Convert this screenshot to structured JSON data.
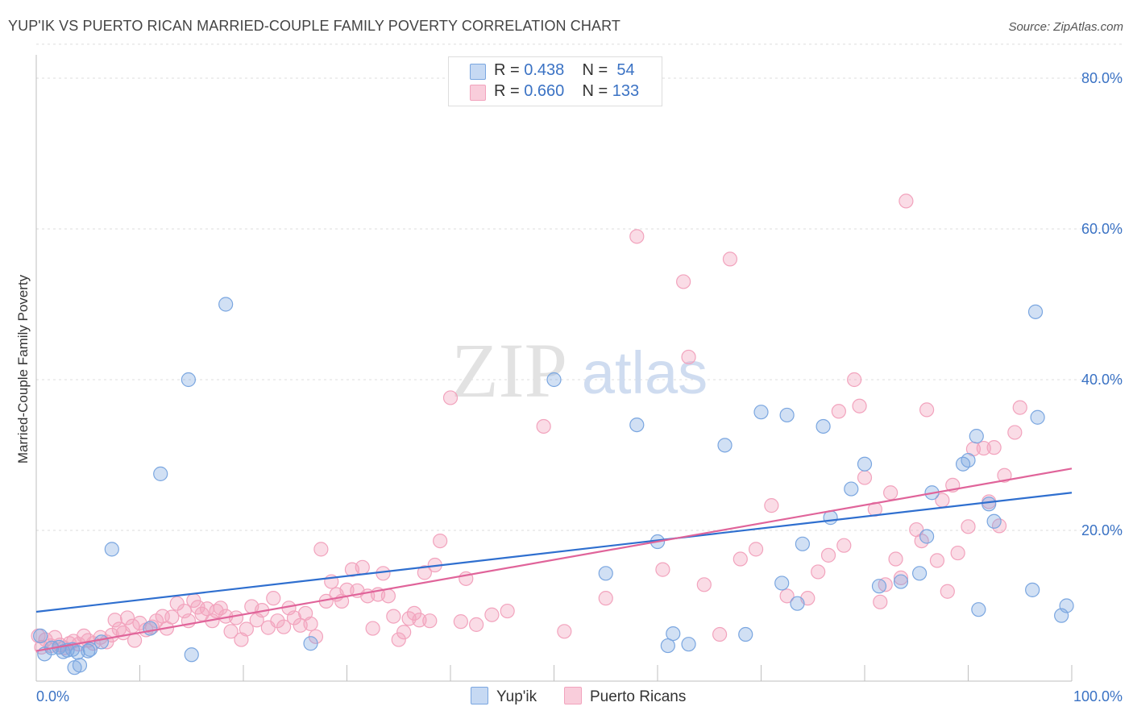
{
  "title": "YUP'IK VS PUERTO RICAN MARRIED-COUPLE FAMILY POVERTY CORRELATION CHART",
  "source": "Source: ZipAtlas.com",
  "watermark": {
    "zip": "ZIP",
    "atlas": "atlas"
  },
  "legend": {
    "yupik": {
      "r_label": "R =",
      "r_value": "0.438",
      "n_label": "N =",
      "n_value": "54"
    },
    "pr": {
      "r_label": "R =",
      "r_value": "0.660",
      "n_label": "N =",
      "n_value": "133"
    }
  },
  "chart_data": {
    "type": "scatter",
    "title": "YUP'IK VS PUERTO RICAN MARRIED-COUPLE FAMILY POVERTY CORRELATION CHART",
    "xlabel": "",
    "ylabel": "Married-Couple Family Poverty",
    "xlim": [
      0,
      100
    ],
    "ylim": [
      0,
      85
    ],
    "x_tick_labels": [
      "0.0%",
      "100.0%"
    ],
    "y_ticks": [
      20,
      40,
      60,
      80
    ],
    "y_tick_labels": [
      "20.0%",
      "40.0%",
      "60.0%",
      "80.0%"
    ],
    "grid": true,
    "legend_position": "bottom",
    "colors": {
      "yupik": "#7aa6e0",
      "yupik_line": "#2f6fcf",
      "pr": "#f2a3bd",
      "pr_line": "#e0649a",
      "tick": "#3a72c4"
    },
    "series": [
      {
        "name": "Yup'ik",
        "trend": {
          "y_at_x0": 9.2,
          "y_at_x100": 25.0
        },
        "points": [
          [
            0.4,
            6.0
          ],
          [
            0.8,
            3.6
          ],
          [
            1.5,
            4.4
          ],
          [
            2.2,
            4.5
          ],
          [
            2.6,
            3.9
          ],
          [
            3.0,
            4.1
          ],
          [
            3.5,
            4.2
          ],
          [
            4.0,
            3.8
          ],
          [
            3.7,
            1.8
          ],
          [
            4.2,
            2.1
          ],
          [
            5.0,
            4.0
          ],
          [
            5.2,
            4.2
          ],
          [
            6.3,
            5.2
          ],
          [
            7.3,
            17.5
          ],
          [
            11.0,
            7.0
          ],
          [
            12.0,
            27.5
          ],
          [
            14.7,
            40.0
          ],
          [
            15.0,
            3.5
          ],
          [
            18.3,
            50.0
          ],
          [
            26.5,
            5.0
          ],
          [
            50.0,
            40.0
          ],
          [
            55.0,
            14.3
          ],
          [
            58.0,
            34.0
          ],
          [
            60.0,
            18.5
          ],
          [
            61.0,
            4.7
          ],
          [
            61.5,
            6.3
          ],
          [
            63.0,
            4.9
          ],
          [
            66.5,
            31.3
          ],
          [
            68.5,
            6.2
          ],
          [
            70.0,
            35.7
          ],
          [
            72.0,
            13.0
          ],
          [
            72.5,
            35.3
          ],
          [
            73.5,
            10.3
          ],
          [
            74.0,
            18.2
          ],
          [
            76.0,
            33.8
          ],
          [
            76.7,
            21.7
          ],
          [
            78.7,
            25.5
          ],
          [
            80.0,
            28.8
          ],
          [
            81.4,
            12.6
          ],
          [
            83.5,
            13.2
          ],
          [
            85.3,
            14.3
          ],
          [
            86.0,
            19.2
          ],
          [
            86.5,
            25.0
          ],
          [
            89.5,
            28.8
          ],
          [
            90.0,
            29.3
          ],
          [
            90.8,
            32.5
          ],
          [
            91.0,
            9.5
          ],
          [
            92.0,
            23.5
          ],
          [
            92.5,
            21.2
          ],
          [
            96.5,
            49.0
          ],
          [
            96.7,
            35.0
          ],
          [
            96.2,
            12.1
          ],
          [
            99.0,
            8.7
          ],
          [
            99.5,
            10.0
          ]
        ]
      },
      {
        "name": "Puerto Ricans",
        "trend": {
          "y_at_x0": 4.0,
          "y_at_x100": 28.2
        },
        "points": [
          [
            0.2,
            6.0
          ],
          [
            0.5,
            4.5
          ],
          [
            0.9,
            5.5
          ],
          [
            1.4,
            4.7
          ],
          [
            1.8,
            5.8
          ],
          [
            2.3,
            4.8
          ],
          [
            2.7,
            4.4
          ],
          [
            3.2,
            5.0
          ],
          [
            3.6,
            5.3
          ],
          [
            4.1,
            4.9
          ],
          [
            4.6,
            6.0
          ],
          [
            5.0,
            5.4
          ],
          [
            5.5,
            5.0
          ],
          [
            6.2,
            5.8
          ],
          [
            6.8,
            5.2
          ],
          [
            7.3,
            6.1
          ],
          [
            7.6,
            8.1
          ],
          [
            8.0,
            6.9
          ],
          [
            8.4,
            6.4
          ],
          [
            8.8,
            8.4
          ],
          [
            9.3,
            7.3
          ],
          [
            9.5,
            5.4
          ],
          [
            10.0,
            7.7
          ],
          [
            10.6,
            6.8
          ],
          [
            11.2,
            7.2
          ],
          [
            11.6,
            8.0
          ],
          [
            12.2,
            8.6
          ],
          [
            12.6,
            7.0
          ],
          [
            13.1,
            8.5
          ],
          [
            13.6,
            10.3
          ],
          [
            14.3,
            9.3
          ],
          [
            14.7,
            8.0
          ],
          [
            15.2,
            10.7
          ],
          [
            15.6,
            9.8
          ],
          [
            16.0,
            8.9
          ],
          [
            16.5,
            9.6
          ],
          [
            17.0,
            8.0
          ],
          [
            17.4,
            9.3
          ],
          [
            17.8,
            9.7
          ],
          [
            18.3,
            8.6
          ],
          [
            18.8,
            6.6
          ],
          [
            19.3,
            8.4
          ],
          [
            19.8,
            5.5
          ],
          [
            20.3,
            6.9
          ],
          [
            20.8,
            9.9
          ],
          [
            21.3,
            8.1
          ],
          [
            21.8,
            9.4
          ],
          [
            22.4,
            7.1
          ],
          [
            22.9,
            11.0
          ],
          [
            23.3,
            8.0
          ],
          [
            23.9,
            7.2
          ],
          [
            24.4,
            9.7
          ],
          [
            24.9,
            8.4
          ],
          [
            25.5,
            7.4
          ],
          [
            26.0,
            9.0
          ],
          [
            26.5,
            7.6
          ],
          [
            27.0,
            5.9
          ],
          [
            27.5,
            17.5
          ],
          [
            28.0,
            10.6
          ],
          [
            28.5,
            13.2
          ],
          [
            29.0,
            11.5
          ],
          [
            29.5,
            10.6
          ],
          [
            30.0,
            12.1
          ],
          [
            30.5,
            14.8
          ],
          [
            31.0,
            12.0
          ],
          [
            31.5,
            15.1
          ],
          [
            32.0,
            11.3
          ],
          [
            32.5,
            7.0
          ],
          [
            33.0,
            11.5
          ],
          [
            33.5,
            14.3
          ],
          [
            34.0,
            11.3
          ],
          [
            34.5,
            8.6
          ],
          [
            35.0,
            5.5
          ],
          [
            35.5,
            6.5
          ],
          [
            36.0,
            8.3
          ],
          [
            36.5,
            9.0
          ],
          [
            37.0,
            8.1
          ],
          [
            37.5,
            14.4
          ],
          [
            38.0,
            8.0
          ],
          [
            38.5,
            15.4
          ],
          [
            39.0,
            18.6
          ],
          [
            40.0,
            37.6
          ],
          [
            41.0,
            7.9
          ],
          [
            41.5,
            13.6
          ],
          [
            42.5,
            7.5
          ],
          [
            44.0,
            8.8
          ],
          [
            45.5,
            9.3
          ],
          [
            49.0,
            33.8
          ],
          [
            51.0,
            6.6
          ],
          [
            55.0,
            11.0
          ],
          [
            58.0,
            59.0
          ],
          [
            60.5,
            14.8
          ],
          [
            62.5,
            53.0
          ],
          [
            63.0,
            43.0
          ],
          [
            64.5,
            12.8
          ],
          [
            66.0,
            6.2
          ],
          [
            67.0,
            56.0
          ],
          [
            68.0,
            16.2
          ],
          [
            69.5,
            17.5
          ],
          [
            71.0,
            23.3
          ],
          [
            72.5,
            11.3
          ],
          [
            74.5,
            11.0
          ],
          [
            75.5,
            14.5
          ],
          [
            76.5,
            16.7
          ],
          [
            77.5,
            35.8
          ],
          [
            78.0,
            18.0
          ],
          [
            79.0,
            40.0
          ],
          [
            79.5,
            36.5
          ],
          [
            80.0,
            27.0
          ],
          [
            81.0,
            22.8
          ],
          [
            81.5,
            10.5
          ],
          [
            82.0,
            12.8
          ],
          [
            82.5,
            25.0
          ],
          [
            83.0,
            16.2
          ],
          [
            83.5,
            13.7
          ],
          [
            84.0,
            63.7
          ],
          [
            85.0,
            20.1
          ],
          [
            85.5,
            18.6
          ],
          [
            86.0,
            36.0
          ],
          [
            87.0,
            16.0
          ],
          [
            87.5,
            24.0
          ],
          [
            88.0,
            11.9
          ],
          [
            88.5,
            26.0
          ],
          [
            89.0,
            17.0
          ],
          [
            90.0,
            20.5
          ],
          [
            90.5,
            30.8
          ],
          [
            91.5,
            30.9
          ],
          [
            92.5,
            31.0
          ],
          [
            93.5,
            27.3
          ],
          [
            94.5,
            33.0
          ],
          [
            95.0,
            36.3
          ],
          [
            93.0,
            20.6
          ],
          [
            92.0,
            23.8
          ]
        ]
      }
    ]
  },
  "bottom_legend": {
    "yupik_label": "Yup'ik",
    "pr_label": "Puerto Ricans"
  }
}
